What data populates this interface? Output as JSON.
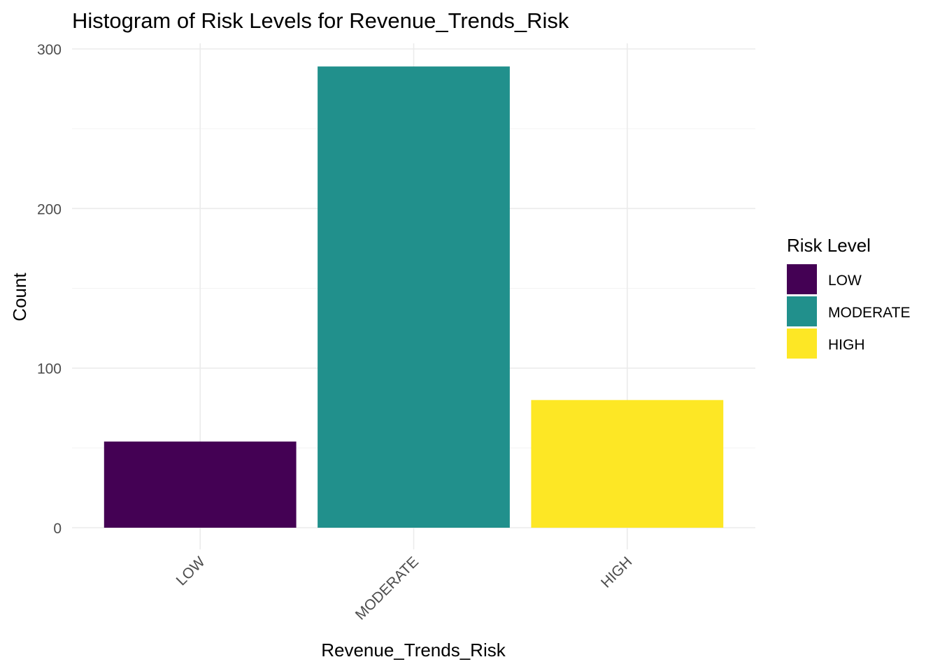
{
  "chart_data": {
    "type": "bar",
    "title": "Histogram of Risk Levels for Revenue_Trends_Risk",
    "xlabel": "Revenue_Trends_Risk",
    "ylabel": "Count",
    "categories": [
      "LOW",
      "MODERATE",
      "HIGH"
    ],
    "values": [
      54,
      289,
      80
    ],
    "colors": [
      "#440154",
      "#21908C",
      "#FDE725"
    ],
    "ylim": [
      0,
      300
    ],
    "yticks": [
      0,
      100,
      200,
      300
    ],
    "grid": true,
    "legend": {
      "title": "Risk Level",
      "placement": "right",
      "entries": [
        "LOW",
        "MODERATE",
        "HIGH"
      ]
    }
  }
}
